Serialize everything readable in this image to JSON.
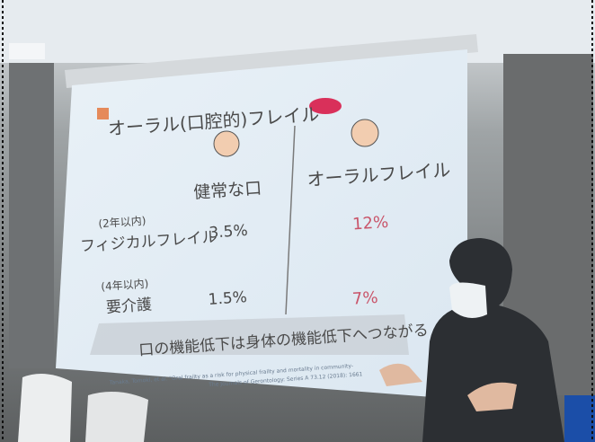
{
  "slide": {
    "title": "オーラル(口腔的)フレイル",
    "columns": [
      "健常な口",
      "オーラルフレイル"
    ],
    "rows": [
      {
        "period": "(2年以内)",
        "label": "フィジカルフレイル",
        "values": [
          "3.5%",
          "12%"
        ]
      },
      {
        "period": "(4年以内)",
        "label": "要介護",
        "values": [
          "1.5%",
          "7%"
        ]
      }
    ],
    "conclusion": "口の機能低下は身体の機能低下へつながる",
    "citation": [
      "Tanaka, Tomoki, et al. \"Oral frailty as a risk for physical frailty and mortality in community-",
      "The Journals of Gerontology: Series A 73.12 (2018): 1661"
    ]
  }
}
